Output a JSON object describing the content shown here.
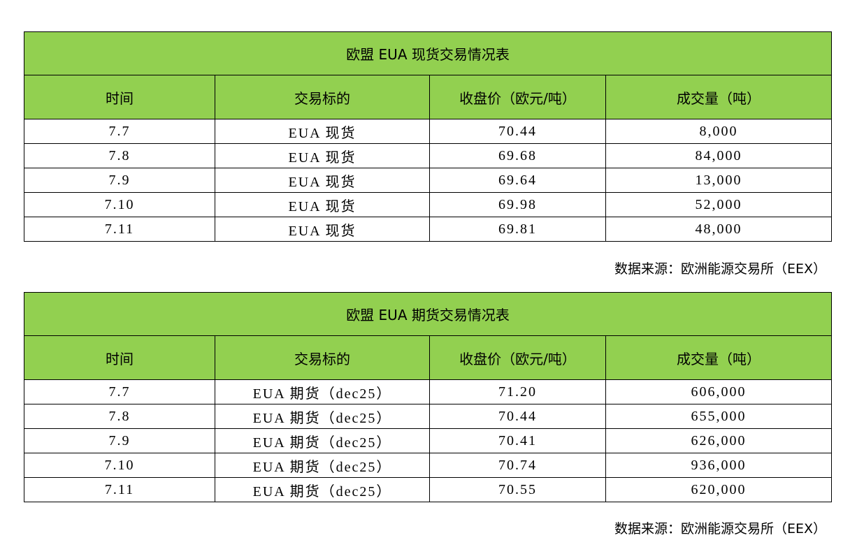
{
  "colors": {
    "header_bg": "#92d050"
  },
  "tables": [
    {
      "title": "欧盟 EUA 现货交易情况表",
      "headers": [
        "时间",
        "交易标的",
        "收盘价（欧元/吨）",
        "成交量（吨）"
      ],
      "rows": [
        [
          "7.7",
          "EUA 现货",
          "70.44",
          "8,000"
        ],
        [
          "7.8",
          "EUA 现货",
          "69.68",
          "84,000"
        ],
        [
          "7.9",
          "EUA 现货",
          "69.64",
          "13,000"
        ],
        [
          "7.10",
          "EUA 现货",
          "69.98",
          "52,000"
        ],
        [
          "7.11",
          "EUA 现货",
          "69.81",
          "48,000"
        ]
      ],
      "source": "数据来源：欧洲能源交易所（EEX）"
    },
    {
      "title": "欧盟 EUA 期货交易情况表",
      "headers": [
        "时间",
        "交易标的",
        "收盘价（欧元/吨）",
        "成交量（吨）"
      ],
      "rows": [
        [
          "7.7",
          "EUA 期货（dec25）",
          "71.20",
          "606,000"
        ],
        [
          "7.8",
          "EUA 期货（dec25）",
          "70.44",
          "655,000"
        ],
        [
          "7.9",
          "EUA 期货（dec25）",
          "70.41",
          "626,000"
        ],
        [
          "7.10",
          "EUA 期货（dec25）",
          "70.74",
          "936,000"
        ],
        [
          "7.11",
          "EUA 期货（dec25）",
          "70.55",
          "620,000"
        ]
      ],
      "source": "数据来源：欧洲能源交易所（EEX）"
    }
  ]
}
